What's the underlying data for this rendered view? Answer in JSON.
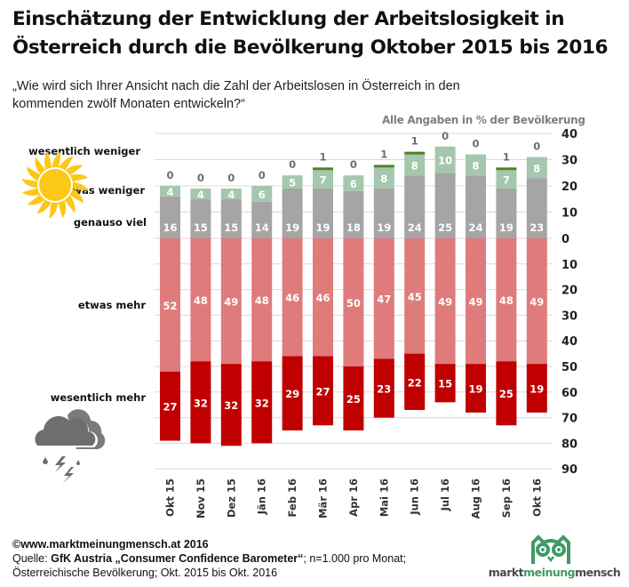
{
  "title_line1": "Einschätzung der Entwicklung der Arbeitslosigkeit in",
  "title_line2": "Österreich durch die Bevölkerung Oktober 2015 bis 2016",
  "question_line1": "„Wie wird sich Ihrer Ansicht nach die Zahl der Arbeitslosen in Österreich in den",
  "question_line2": "kommenden  zwölf Monaten entwickeln?“",
  "note": "Alle Angaben  in % der Bevölkerung",
  "icons": {
    "top": "sun-icon",
    "bottom": "thunderstorm-cloud-icon"
  },
  "footer": {
    "copyright": "©www.marktmeinungmensch.at  2016",
    "source_prefix": "Quelle: ",
    "source_bold": "GfK Austria „Consumer Confidence Barometer“",
    "source_suffix": "; n=1.000 pro Monat;",
    "line3": "Österreichische Bevölkerung; Okt.  2015 bis Okt. 2016"
  },
  "logo": {
    "part1": "markt",
    "part2": "meinung",
    "part3": "mensch",
    "icon": "owl-icon"
  },
  "colors": {
    "wesentlich_weniger": "#4e7f1e",
    "etwas_weniger": "#a5c7ad",
    "genauso_viel": "#a5a5a5",
    "etwas_mehr": "#e07b7b",
    "wesentlich_mehr": "#c00000",
    "grid": "#d9d9d9"
  },
  "chart_data": {
    "type": "bar",
    "subtype": "diverging-stacked",
    "title": "Einschätzung der Entwicklung der Arbeitslosigkeit in Österreich durch die Bevölkerung Oktober 2015 bis 2016",
    "unit": "% der Bevölkerung",
    "categories": [
      "Okt 15",
      "Nov 15",
      "Dez 15",
      "Jän 16",
      "Feb 16",
      "Mär 16",
      "Apr 16",
      "Mai 16",
      "Jun 16",
      "Jul 16",
      "Aug 16",
      "Sep 16",
      "Okt 16"
    ],
    "series": [
      {
        "name": "wesentlich weniger",
        "direction": "up",
        "values": [
          0,
          0,
          0,
          0,
          0,
          1,
          0,
          1,
          1,
          0,
          0,
          1,
          0
        ]
      },
      {
        "name": "etwas weniger",
        "direction": "up",
        "values": [
          4,
          4,
          4,
          6,
          5,
          7,
          6,
          8,
          8,
          10,
          8,
          7,
          8
        ]
      },
      {
        "name": "genauso viel",
        "direction": "up",
        "values": [
          16,
          15,
          15,
          14,
          19,
          19,
          18,
          19,
          24,
          25,
          24,
          19,
          23
        ]
      },
      {
        "name": "etwas mehr",
        "direction": "down",
        "values": [
          52,
          48,
          49,
          48,
          46,
          46,
          50,
          47,
          45,
          49,
          49,
          48,
          49
        ]
      },
      {
        "name": "wesentlich mehr",
        "direction": "down",
        "values": [
          27,
          32,
          32,
          32,
          29,
          27,
          25,
          23,
          22,
          15,
          19,
          25,
          19
        ]
      }
    ],
    "yaxis": {
      "ticks_up": [
        0,
        10,
        20,
        30,
        40
      ],
      "ticks_down": [
        10,
        20,
        30,
        40,
        50,
        60,
        70,
        80,
        90
      ],
      "range_up": [
        0,
        40
      ],
      "range_down": [
        0,
        90
      ]
    },
    "grid": true,
    "legend": "left-side row labels",
    "xlabel": "",
    "ylabel": ""
  }
}
